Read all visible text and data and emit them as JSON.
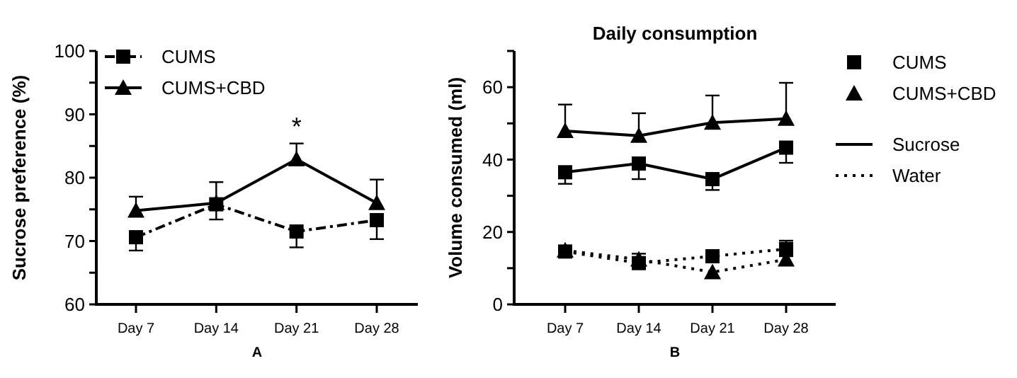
{
  "chart_data": [
    {
      "type": "line",
      "xlabel": "A",
      "ylabel": "Sucrose preference (%)",
      "categories": [
        "Day 7",
        "Day 14",
        "Day 21",
        "Day 28"
      ],
      "ylim": [
        60,
        100
      ],
      "yticks": [
        60,
        {
          "value": 65,
          "label": null
        },
        70,
        {
          "value": 75,
          "label": null
        },
        80,
        {
          "value": 85,
          "label": null
        },
        90,
        {
          "value": 95,
          "label": null
        },
        100
      ],
      "legend": "top left",
      "annotations": [
        "*"
      ],
      "series": [
        {
          "name": "CUMS",
          "color": "#000000",
          "marker": "square",
          "line_style": "dashed",
          "values": [
            70.6,
            75.8,
            71.5,
            73.3
          ],
          "errors": [
            [
              68.5,
              70.6
            ],
            [
              73.4,
              75.8
            ],
            [
              69,
              71.5
            ],
            [
              70.3,
              73.3
            ]
          ]
        },
        {
          "name": "CUMS+CBD",
          "color": "#000000",
          "marker": "triangle",
          "line_style": "solid",
          "values": [
            74.8,
            76,
            82.9,
            76
          ],
          "errors": [
            [
              74.8,
              77
            ],
            [
              76,
              79.3
            ],
            [
              82.9,
              85.4
            ],
            [
              76,
              79.7
            ]
          ]
        }
      ]
    },
    {
      "type": "line",
      "title": "Daily consumption",
      "xlabel": "B",
      "ylabel": "Volume consumed (ml)",
      "categories": [
        "Day 7",
        "Day 14",
        "Day 21",
        "Day 28"
      ],
      "ylim": [
        0,
        70
      ],
      "yticks": [
        0,
        {
          "value": 10,
          "label": null
        },
        20,
        {
          "value": 30,
          "label": null
        },
        40,
        {
          "value": 50,
          "label": null
        },
        60,
        {
          "value": 70,
          "label": null
        }
      ],
      "legend": "right",
      "annotations": [
        "Sucrose",
        "Water"
      ],
      "series": [
        {
          "name": "CUMS",
          "color": "#000000",
          "marker": "square",
          "line_style": "solid",
          "values": [
            36.5,
            38.9,
            34.6,
            43.3
          ],
          "errors": [
            [
              33.3,
              36.5
            ],
            [
              34.6,
              38.9
            ],
            [
              31.6,
              34.6
            ],
            [
              39.1,
              43.3
            ]
          ]
        },
        {
          "name": "CUMS+CBD",
          "color": "#000000",
          "marker": "triangle",
          "line_style": "solid",
          "values": [
            47.9,
            46.6,
            50.2,
            51.3
          ],
          "errors": [
            [
              47.9,
              55.2
            ],
            [
              46.6,
              52.8
            ],
            [
              50.2,
              57.7
            ],
            [
              51.3,
              61.2
            ]
          ]
        },
        {
          "color": "#000000",
          "marker": "square",
          "line_style": "dotted",
          "values": [
            14.6,
            11.4,
            13.3,
            15.3
          ],
          "errors": [
            null,
            null,
            null,
            [
              15.3,
              17.6
            ]
          ]
        },
        {
          "color": "#000000",
          "marker": "triangle",
          "line_style": "dotted",
          "values": [
            14.9,
            12.4,
            8.9,
            12.4
          ],
          "errors": [
            null,
            [
              12.4,
              14.0
            ],
            null,
            [
              12.4,
              13.3
            ]
          ]
        }
      ]
    }
  ]
}
